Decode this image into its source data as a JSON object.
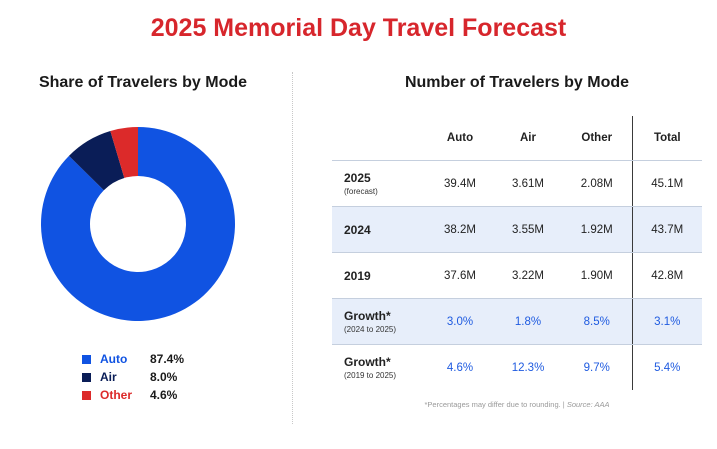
{
  "title": "2025 Memorial Day Travel Forecast",
  "left_title": "Share of Travelers by Mode",
  "right_title": "Number of Travelers by Mode",
  "colors": {
    "auto": "#1053e2",
    "air": "#0a1d57",
    "other": "#dc2a2a",
    "accent": "#d7262c",
    "growth_text": "#1f5be0"
  },
  "chart_data": [
    {
      "type": "pie",
      "title": "Share of Travelers by Mode",
      "donut": true,
      "slices": [
        {
          "label": "Auto",
          "value": 87.4,
          "display": "87.4%",
          "color": "#1053e2"
        },
        {
          "label": "Air",
          "value": 8.0,
          "display": "8.0%",
          "color": "#0a1d57"
        },
        {
          "label": "Other",
          "value": 4.6,
          "display": "4.6%",
          "color": "#dc2a2a"
        }
      ]
    },
    {
      "type": "table",
      "title": "Number of Travelers by Mode",
      "columns": [
        "Auto",
        "Air",
        "Other",
        "Total"
      ],
      "rows": [
        {
          "label": "2025",
          "sub": "(forecast)",
          "values": [
            "39.4M",
            "3.61M",
            "2.08M",
            "45.1M"
          ]
        },
        {
          "label": "2024",
          "sub": "",
          "values": [
            "38.2M",
            "3.55M",
            "1.92M",
            "43.7M"
          ]
        },
        {
          "label": "2019",
          "sub": "",
          "values": [
            "37.6M",
            "3.22M",
            "1.90M",
            "42.8M"
          ]
        },
        {
          "label": "Growth*",
          "sub": "(2024 to 2025)",
          "values": [
            "3.0%",
            "1.8%",
            "8.5%",
            "3.1%"
          ]
        },
        {
          "label": "Growth*",
          "sub": "(2019 to 2025)",
          "values": [
            "4.6%",
            "12.3%",
            "9.7%",
            "5.4%"
          ]
        }
      ]
    }
  ],
  "footnote": {
    "text": "*Percentages may differ due to rounding. | ",
    "source": "Source: AAA"
  }
}
